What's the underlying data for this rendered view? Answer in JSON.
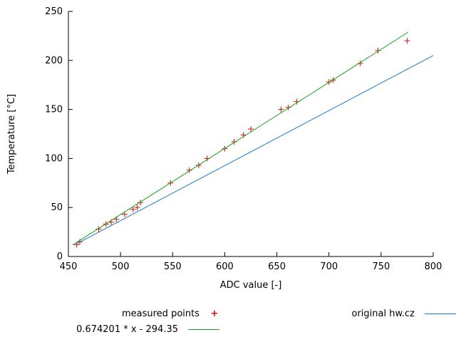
{
  "chart_data": {
    "type": "scatter",
    "title": "",
    "xlabel": "ADC value [-]",
    "ylabel": "Temperature [°C]",
    "xlim": [
      450,
      800
    ],
    "ylim": [
      0,
      250
    ],
    "xticks": [
      450,
      500,
      550,
      600,
      650,
      700,
      750,
      800
    ],
    "yticks": [
      0,
      50,
      100,
      150,
      200,
      250
    ],
    "grid": false,
    "legend_position": "below",
    "axis_color": "#000000",
    "series": [
      {
        "name": "measured points",
        "type": "scatter",
        "marker": "plus",
        "color": "#cc1111",
        "points": [
          [
            458,
            12
          ],
          [
            461,
            15
          ],
          [
            479,
            28
          ],
          [
            486,
            33
          ],
          [
            491,
            35
          ],
          [
            496,
            38
          ],
          [
            504,
            43
          ],
          [
            512,
            48
          ],
          [
            516,
            50
          ],
          [
            519,
            55
          ],
          [
            548,
            75
          ],
          [
            566,
            88
          ],
          [
            575,
            93
          ],
          [
            583,
            100
          ],
          [
            600,
            110
          ],
          [
            609,
            117
          ],
          [
            618,
            124
          ],
          [
            625,
            130
          ],
          [
            654,
            150
          ],
          [
            661,
            152
          ],
          [
            669,
            158
          ],
          [
            700,
            178
          ],
          [
            704,
            180
          ],
          [
            730,
            197
          ],
          [
            747,
            210
          ],
          [
            775,
            220
          ]
        ]
      },
      {
        "name": "0.674201 * x - 294.35",
        "type": "line",
        "color": "#18a018",
        "slope": 0.674201,
        "intercept": -294.35,
        "x_range": [
          454,
          776
        ]
      },
      {
        "name": "original hw.cz",
        "type": "line",
        "color": "#1e78c8",
        "points": [
          [
            458,
            13
          ],
          [
            800,
            205
          ]
        ]
      }
    ]
  }
}
